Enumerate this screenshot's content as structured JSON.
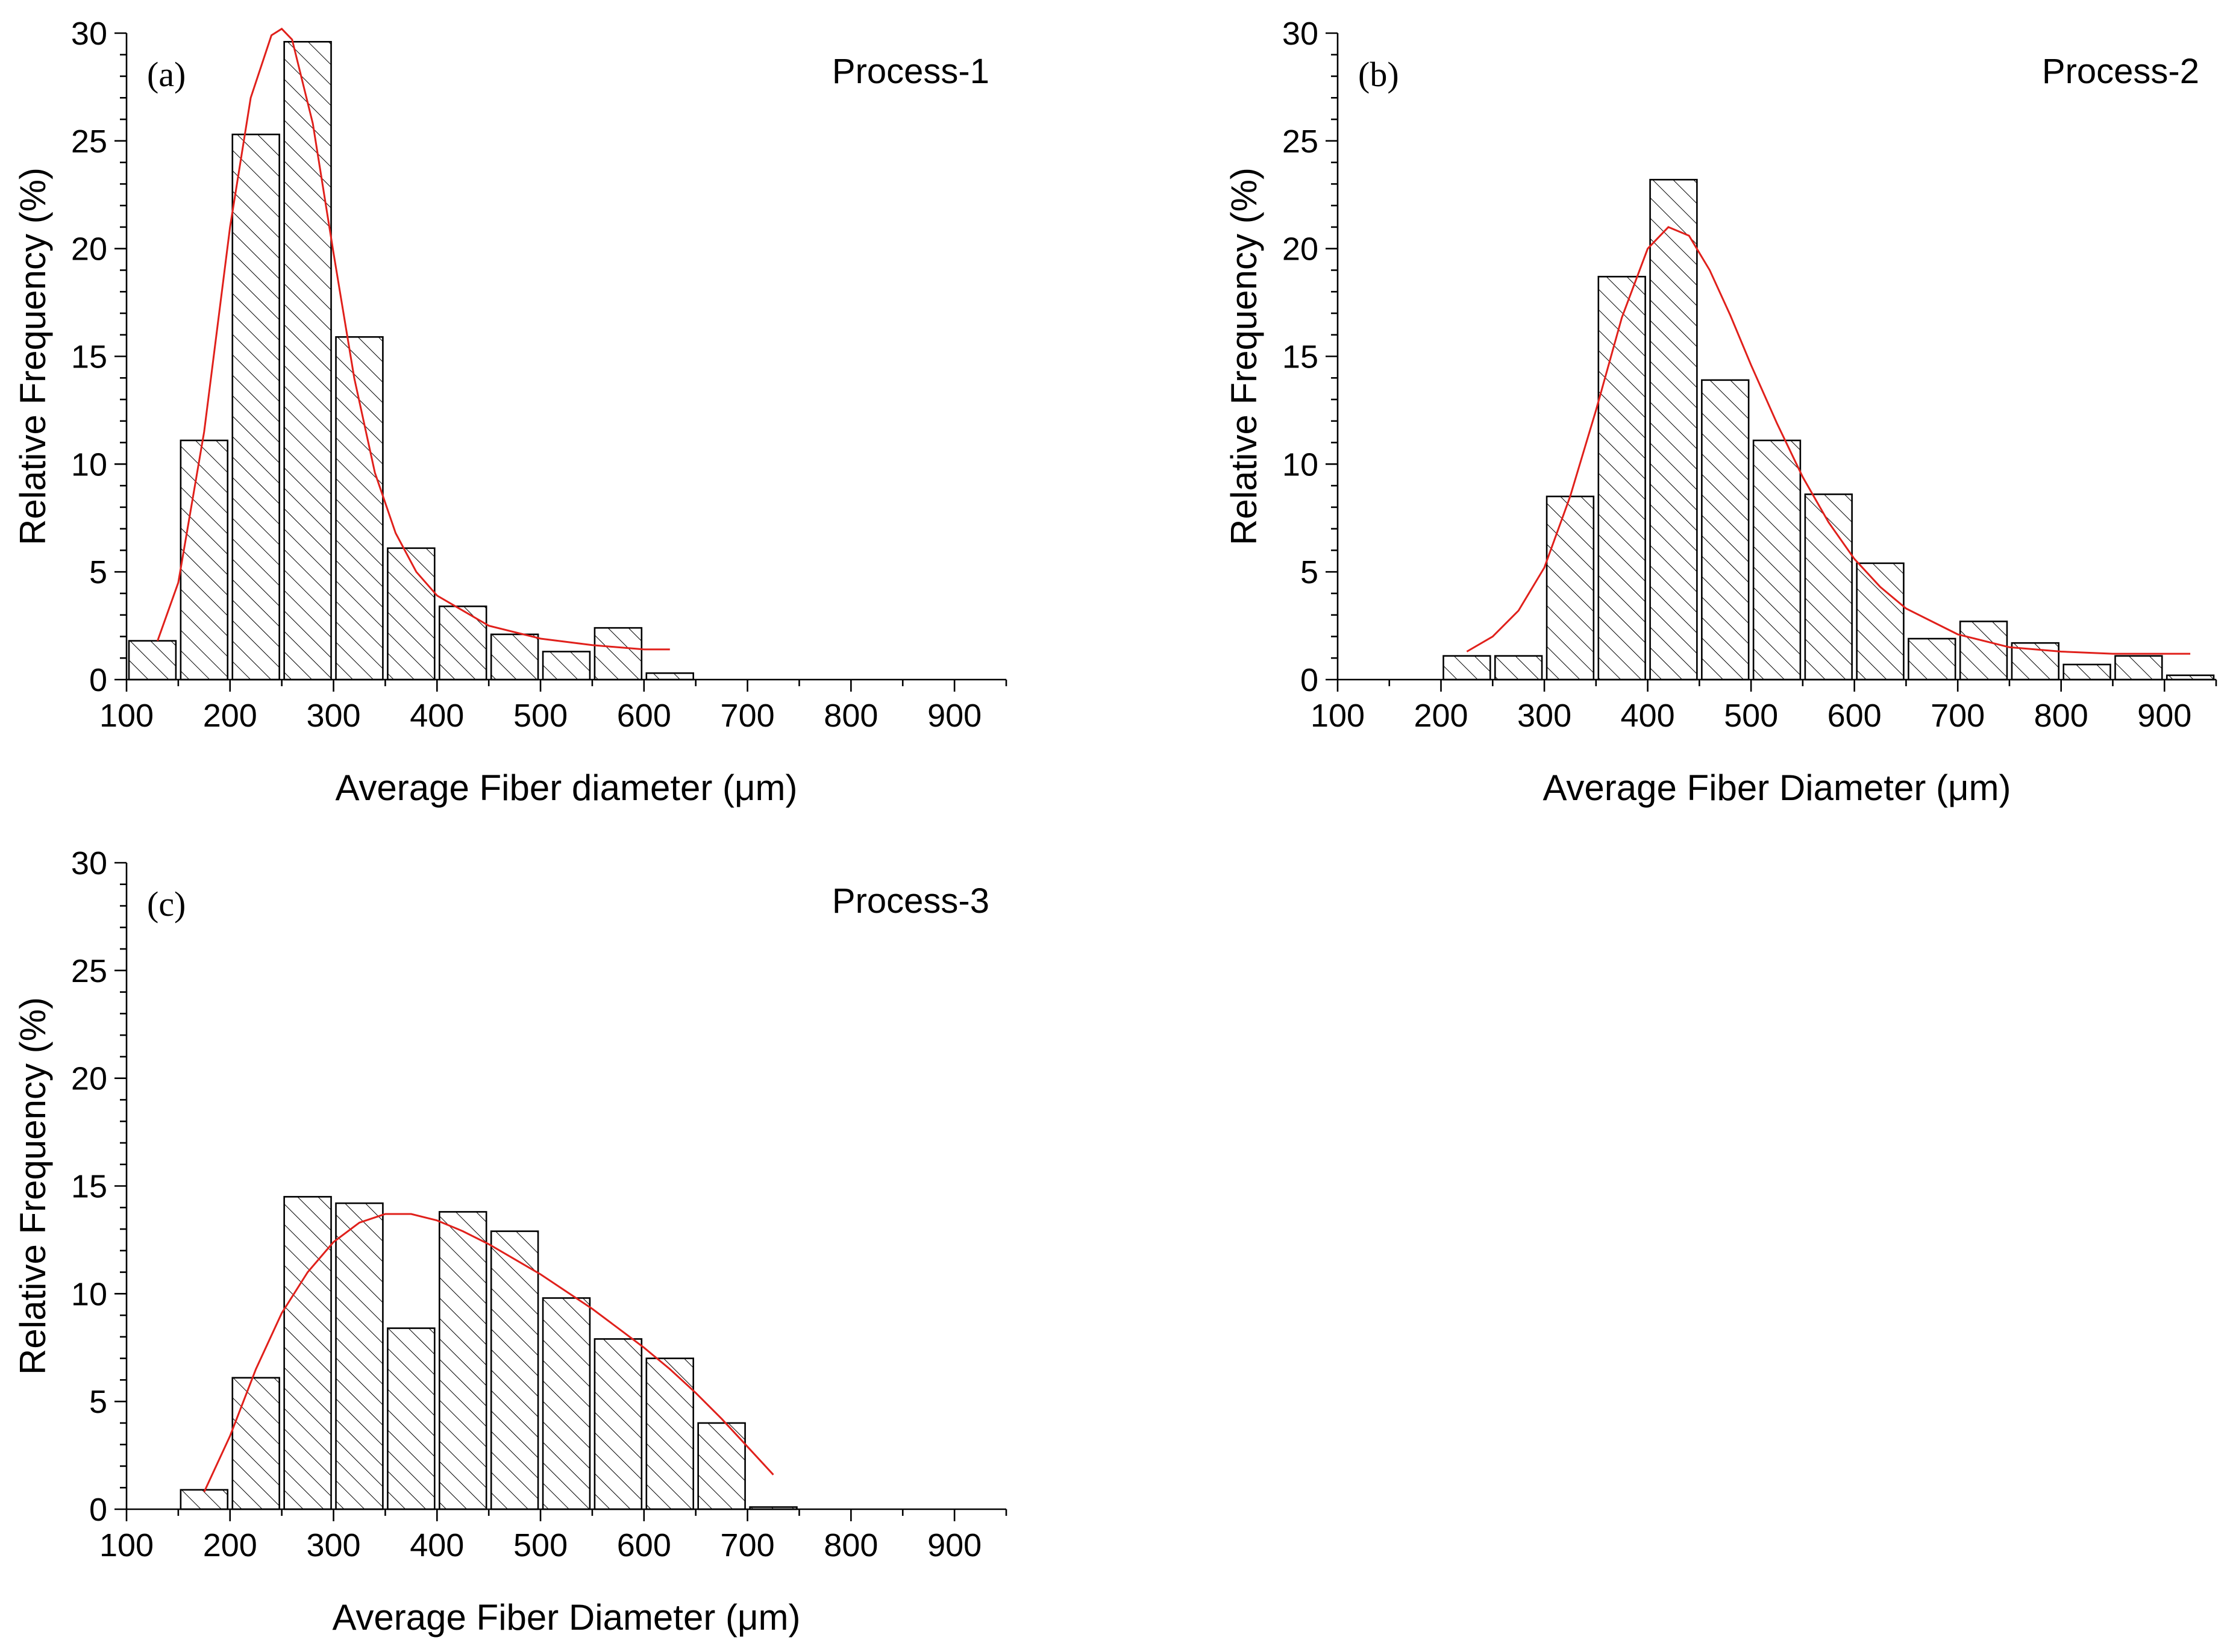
{
  "chart_data": [
    {
      "type": "bar",
      "panel": "(a)",
      "title": "Process-1",
      "xlabel": "Average Fiber diameter (μm)",
      "ylabel": "Relative Frequency (%)",
      "xlim": [
        100,
        950
      ],
      "ylim": [
        0,
        30
      ],
      "xticks": [
        100,
        200,
        300,
        400,
        500,
        600,
        700,
        800,
        900
      ],
      "yticks": [
        0,
        5,
        10,
        15,
        20,
        25,
        30
      ],
      "bin_width": 50,
      "bins": [
        125,
        175,
        225,
        275,
        325,
        375,
        425,
        475,
        525,
        575,
        625
      ],
      "values": [
        1.8,
        11.1,
        25.3,
        29.6,
        15.9,
        6.1,
        3.4,
        2.1,
        1.3,
        2.4,
        0.3
      ],
      "fit": {
        "color": "#e0201b",
        "x": [
          130,
          150,
          175,
          200,
          220,
          240,
          250,
          260,
          280,
          300,
          320,
          340,
          360,
          380,
          400,
          450,
          500,
          550,
          600,
          625
        ],
        "y": [
          1.8,
          4.5,
          11.5,
          21.0,
          27.0,
          29.9,
          30.2,
          29.7,
          25.8,
          19.8,
          14.0,
          9.6,
          6.8,
          5.0,
          3.9,
          2.5,
          1.9,
          1.6,
          1.4,
          1.4
        ]
      }
    },
    {
      "type": "bar",
      "panel": "(b)",
      "title": "Process-2",
      "xlabel": "Average Fiber Diameter (μm)",
      "ylabel": "Relative Frequency (%)",
      "xlim": [
        100,
        950
      ],
      "ylim": [
        0,
        30
      ],
      "xticks": [
        100,
        200,
        300,
        400,
        500,
        600,
        700,
        800,
        900
      ],
      "yticks": [
        0,
        5,
        10,
        15,
        20,
        25,
        30
      ],
      "bin_width": 50,
      "bins": [
        225,
        275,
        325,
        375,
        425,
        475,
        525,
        575,
        625,
        675,
        725,
        775,
        825,
        875,
        925
      ],
      "values": [
        1.1,
        1.1,
        8.5,
        18.7,
        23.2,
        13.9,
        11.1,
        8.6,
        5.4,
        1.9,
        2.7,
        1.7,
        0.7,
        1.1,
        0.2
      ],
      "fit": {
        "color": "#e0201b",
        "x": [
          225,
          250,
          275,
          300,
          325,
          350,
          375,
          400,
          420,
          440,
          460,
          480,
          500,
          525,
          550,
          575,
          600,
          625,
          650,
          700,
          750,
          800,
          850,
          900,
          925
        ],
        "y": [
          1.3,
          2.0,
          3.2,
          5.2,
          8.5,
          12.5,
          16.8,
          20.0,
          21.0,
          20.6,
          19.0,
          16.9,
          14.6,
          11.9,
          9.4,
          7.3,
          5.6,
          4.3,
          3.3,
          2.1,
          1.5,
          1.3,
          1.2,
          1.2,
          1.2
        ]
      }
    },
    {
      "type": "bar",
      "panel": "(c)",
      "title": "Process-3",
      "xlabel": "Average Fiber Diameter (μm)",
      "ylabel": "Relative Frequency (%)",
      "xlim": [
        100,
        950
      ],
      "ylim": [
        0,
        30
      ],
      "xticks": [
        100,
        200,
        300,
        400,
        500,
        600,
        700,
        800,
        900
      ],
      "yticks": [
        0,
        5,
        10,
        15,
        20,
        25,
        30
      ],
      "bin_width": 50,
      "bins": [
        175,
        225,
        275,
        325,
        375,
        425,
        475,
        525,
        575,
        625,
        675,
        725
      ],
      "values": [
        0.9,
        6.1,
        14.5,
        14.2,
        8.4,
        13.8,
        12.9,
        9.8,
        7.9,
        7.0,
        4.0,
        0.1
      ],
      "fit": {
        "color": "#e0201b",
        "x": [
          175,
          200,
          225,
          250,
          275,
          300,
          325,
          350,
          375,
          400,
          425,
          450,
          475,
          500,
          525,
          550,
          575,
          600,
          625,
          650,
          675,
          700,
          725
        ],
        "y": [
          0.8,
          3.4,
          6.5,
          9.1,
          11.0,
          12.4,
          13.3,
          13.7,
          13.7,
          13.4,
          12.9,
          12.3,
          11.6,
          10.9,
          10.1,
          9.3,
          8.4,
          7.5,
          6.5,
          5.4,
          4.2,
          2.9,
          1.6
        ]
      }
    }
  ]
}
